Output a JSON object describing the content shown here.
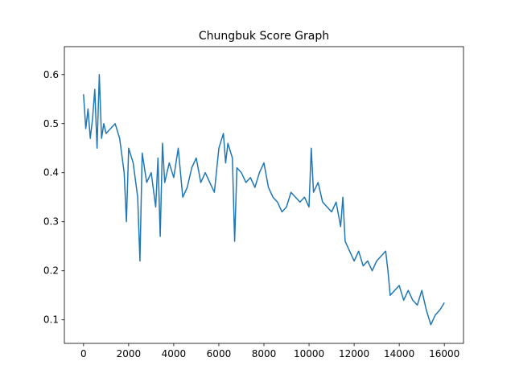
{
  "chart_data": {
    "type": "line",
    "title": "Chungbuk Score Graph",
    "xlabel": "",
    "ylabel": "",
    "xlim": [
      -850,
      16850
    ],
    "ylim": [
      0.052,
      0.657
    ],
    "x_ticks": [
      0,
      2000,
      4000,
      6000,
      8000,
      10000,
      12000,
      14000,
      16000
    ],
    "x_tick_labels": [
      "0",
      "2000",
      "4000",
      "6000",
      "8000",
      "10000",
      "12000",
      "14000",
      "16000"
    ],
    "y_ticks": [
      0.1,
      0.2,
      0.3,
      0.4,
      0.5,
      0.6
    ],
    "y_tick_labels": [
      "0.1",
      "0.2",
      "0.3",
      "0.4",
      "0.5",
      "0.6"
    ],
    "grid": false,
    "legend": "none",
    "series": [
      {
        "color": "#1f77b4",
        "x": [
          0,
          100,
          200,
          300,
          400,
          500,
          600,
          700,
          800,
          900,
          1000,
          1200,
          1400,
          1600,
          1800,
          1900,
          2000,
          2200,
          2400,
          2500,
          2600,
          2800,
          3000,
          3200,
          3300,
          3400,
          3500,
          3600,
          3800,
          4000,
          4200,
          4400,
          4600,
          4800,
          5000,
          5200,
          5400,
          5600,
          5800,
          6000,
          6200,
          6300,
          6400,
          6600,
          6700,
          6800,
          7000,
          7200,
          7400,
          7600,
          7800,
          8000,
          8200,
          8400,
          8600,
          8800,
          9000,
          9200,
          9400,
          9600,
          9800,
          10000,
          10100,
          10200,
          10400,
          10600,
          10800,
          11000,
          11200,
          11400,
          11500,
          11600,
          11800,
          12000,
          12200,
          12400,
          12600,
          12800,
          13000,
          13200,
          13400,
          13500,
          13600,
          13800,
          14000,
          14200,
          14400,
          14600,
          14800,
          15000,
          15200,
          15400,
          15600,
          15800,
          16000
        ],
        "values": [
          0.56,
          0.49,
          0.53,
          0.47,
          0.51,
          0.57,
          0.45,
          0.6,
          0.47,
          0.5,
          0.48,
          0.49,
          0.5,
          0.47,
          0.4,
          0.3,
          0.45,
          0.42,
          0.35,
          0.22,
          0.44,
          0.38,
          0.4,
          0.33,
          0.43,
          0.27,
          0.46,
          0.38,
          0.42,
          0.39,
          0.45,
          0.35,
          0.37,
          0.41,
          0.43,
          0.38,
          0.4,
          0.38,
          0.36,
          0.45,
          0.48,
          0.42,
          0.46,
          0.43,
          0.26,
          0.41,
          0.4,
          0.38,
          0.39,
          0.37,
          0.4,
          0.42,
          0.37,
          0.35,
          0.34,
          0.32,
          0.33,
          0.36,
          0.35,
          0.34,
          0.35,
          0.33,
          0.45,
          0.36,
          0.38,
          0.34,
          0.33,
          0.32,
          0.34,
          0.29,
          0.35,
          0.26,
          0.24,
          0.22,
          0.24,
          0.21,
          0.22,
          0.2,
          0.22,
          0.23,
          0.24,
          0.2,
          0.15,
          0.16,
          0.17,
          0.14,
          0.16,
          0.14,
          0.13,
          0.16,
          0.12,
          0.09,
          0.11,
          0.12,
          0.135
        ]
      }
    ]
  }
}
